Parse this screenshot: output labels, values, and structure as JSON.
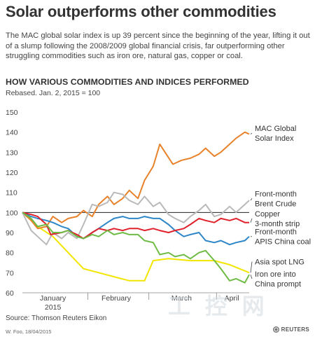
{
  "header": {
    "title": "Solar outperforms other commodities",
    "subtitle": "The MAC global solar index is up 39 percent since the beginning of the year, lifting it out of a slump following the 2008/2009 global financial crisis, far outperforming other struggling commodities such as iron ore, natural gas, copper or coal."
  },
  "chart_heading": "HOW VARIOUS COMMODITIES AND INDICES PERFORMED",
  "chart_subheading": "Rebased. Jan. 2, 2015 = 100",
  "footer": {
    "source": "Source: Thomson Reuters Eikon",
    "credit": "W. Foo, 18/04/2015",
    "logo": "REUTERS"
  },
  "chart_data": {
    "type": "line",
    "title": "HOW VARIOUS COMMODITIES AND INDICES PERFORMED",
    "subtitle": "Rebased. Jan. 2, 2015 = 100",
    "xlabel": "",
    "ylabel": "",
    "x_range": [
      "2015-01-02",
      "2015-04-16"
    ],
    "ylim": [
      60,
      150
    ],
    "yticks": [
      60,
      70,
      80,
      90,
      100,
      110,
      120,
      130,
      140,
      150
    ],
    "grid": false,
    "reference_line": 100,
    "xtick_labels": [
      {
        "label": "January\n2015",
        "date": "2015-01-16"
      },
      {
        "label": "February",
        "date": "2015-02-14"
      },
      {
        "label": "March",
        "date": "2015-03-16"
      },
      {
        "label": "April",
        "date": "2015-04-08"
      }
    ],
    "xtick_separators": [
      "2015-02-01",
      "2015-03-01",
      "2015-04-01"
    ],
    "series": [
      {
        "name": "MAC Global Solar Index",
        "label_lines": [
          "MAC Global",
          "Solar Index"
        ],
        "color": "#e8822a",
        "points": [
          [
            "2015-01-02",
            100
          ],
          [
            "2015-01-06",
            96
          ],
          [
            "2015-01-09",
            92
          ],
          [
            "2015-01-13",
            93
          ],
          [
            "2015-01-16",
            98
          ],
          [
            "2015-01-20",
            95
          ],
          [
            "2015-01-23",
            97
          ],
          [
            "2015-01-27",
            98
          ],
          [
            "2015-01-30",
            101
          ],
          [
            "2015-02-03",
            98
          ],
          [
            "2015-02-06",
            104
          ],
          [
            "2015-02-10",
            108
          ],
          [
            "2015-02-13",
            104
          ],
          [
            "2015-02-17",
            107
          ],
          [
            "2015-02-20",
            111
          ],
          [
            "2015-02-24",
            107
          ],
          [
            "2015-02-27",
            116
          ],
          [
            "2015-03-03",
            123
          ],
          [
            "2015-03-06",
            134
          ],
          [
            "2015-03-09",
            129
          ],
          [
            "2015-03-12",
            124
          ],
          [
            "2015-03-16",
            126
          ],
          [
            "2015-03-20",
            127
          ],
          [
            "2015-03-24",
            129
          ],
          [
            "2015-03-27",
            132
          ],
          [
            "2015-03-31",
            128
          ],
          [
            "2015-04-03",
            130
          ],
          [
            "2015-04-07",
            134
          ],
          [
            "2015-04-10",
            137
          ],
          [
            "2015-04-14",
            140
          ],
          [
            "2015-04-16",
            139
          ]
        ],
        "label_value": 139.5
      },
      {
        "name": "Front-month Brent Crude",
        "label_lines": [
          "Front-month",
          "Brent Crude"
        ],
        "color": "#b9b9b9",
        "points": [
          [
            "2015-01-02",
            100
          ],
          [
            "2015-01-06",
            91
          ],
          [
            "2015-01-09",
            88
          ],
          [
            "2015-01-13",
            84
          ],
          [
            "2015-01-16",
            90
          ],
          [
            "2015-01-20",
            87
          ],
          [
            "2015-01-23",
            90
          ],
          [
            "2015-01-27",
            87
          ],
          [
            "2015-01-30",
            94
          ],
          [
            "2015-02-03",
            104
          ],
          [
            "2015-02-06",
            103
          ],
          [
            "2015-02-10",
            105
          ],
          [
            "2015-02-13",
            110
          ],
          [
            "2015-02-17",
            109
          ],
          [
            "2015-02-20",
            106
          ],
          [
            "2015-02-24",
            104
          ],
          [
            "2015-02-27",
            108
          ],
          [
            "2015-03-03",
            103
          ],
          [
            "2015-03-06",
            105
          ],
          [
            "2015-03-10",
            99
          ],
          [
            "2015-03-13",
            97
          ],
          [
            "2015-03-17",
            95
          ],
          [
            "2015-03-20",
            98
          ],
          [
            "2015-03-24",
            101
          ],
          [
            "2015-03-27",
            104
          ],
          [
            "2015-03-31",
            98
          ],
          [
            "2015-04-03",
            99
          ],
          [
            "2015-04-07",
            103
          ],
          [
            "2015-04-10",
            100
          ],
          [
            "2015-04-14",
            104
          ],
          [
            "2015-04-16",
            106
          ]
        ],
        "label_value": 107
      },
      {
        "name": "Copper 3-month strip",
        "label_lines": [
          "Copper",
          "3-month strip"
        ],
        "color": "#e0202a",
        "points": [
          [
            "2015-01-02",
            100
          ],
          [
            "2015-01-06",
            99
          ],
          [
            "2015-01-09",
            98
          ],
          [
            "2015-01-13",
            94
          ],
          [
            "2015-01-15",
            89
          ],
          [
            "2015-01-20",
            90
          ],
          [
            "2015-01-23",
            91
          ],
          [
            "2015-01-27",
            89
          ],
          [
            "2015-01-30",
            87
          ],
          [
            "2015-02-03",
            90
          ],
          [
            "2015-02-06",
            92
          ],
          [
            "2015-02-10",
            91
          ],
          [
            "2015-02-13",
            92
          ],
          [
            "2015-02-17",
            91
          ],
          [
            "2015-02-20",
            92
          ],
          [
            "2015-02-24",
            92
          ],
          [
            "2015-02-27",
            91
          ],
          [
            "2015-03-03",
            92
          ],
          [
            "2015-03-06",
            91
          ],
          [
            "2015-03-10",
            90
          ],
          [
            "2015-03-13",
            91
          ],
          [
            "2015-03-17",
            92
          ],
          [
            "2015-03-20",
            94
          ],
          [
            "2015-03-24",
            97
          ],
          [
            "2015-03-27",
            96
          ],
          [
            "2015-03-31",
            95
          ],
          [
            "2015-04-03",
            97
          ],
          [
            "2015-04-07",
            96
          ],
          [
            "2015-04-10",
            97
          ],
          [
            "2015-04-14",
            95
          ],
          [
            "2015-04-16",
            95
          ]
        ],
        "label_value": 97
      },
      {
        "name": "Front-month APIS China coal",
        "label_lines": [
          "Front-month",
          "APIS China coal"
        ],
        "color": "#2c86c8",
        "points": [
          [
            "2015-01-02",
            100
          ],
          [
            "2015-01-06",
            98
          ],
          [
            "2015-01-09",
            97
          ],
          [
            "2015-01-13",
            96
          ],
          [
            "2015-01-16",
            95
          ],
          [
            "2015-01-20",
            93
          ],
          [
            "2015-01-23",
            92
          ],
          [
            "2015-01-27",
            88
          ],
          [
            "2015-01-30",
            87
          ],
          [
            "2015-02-03",
            90
          ],
          [
            "2015-02-06",
            92
          ],
          [
            "2015-02-10",
            95
          ],
          [
            "2015-02-13",
            97
          ],
          [
            "2015-02-17",
            98
          ],
          [
            "2015-02-20",
            97
          ],
          [
            "2015-02-24",
            97
          ],
          [
            "2015-02-27",
            98
          ],
          [
            "2015-03-03",
            97
          ],
          [
            "2015-03-06",
            97
          ],
          [
            "2015-03-10",
            94
          ],
          [
            "2015-03-13",
            91
          ],
          [
            "2015-03-17",
            88
          ],
          [
            "2015-03-20",
            89
          ],
          [
            "2015-03-24",
            90
          ],
          [
            "2015-03-27",
            86
          ],
          [
            "2015-03-31",
            85
          ],
          [
            "2015-04-03",
            86
          ],
          [
            "2015-04-07",
            84
          ],
          [
            "2015-04-10",
            85
          ],
          [
            "2015-04-14",
            86
          ],
          [
            "2015-04-16",
            88
          ]
        ],
        "label_value": 88
      },
      {
        "name": "Asia spot LNG",
        "label_lines": [
          "Asia spot LNG"
        ],
        "color": "#f2e600",
        "points": [
          [
            "2015-01-02",
            100
          ],
          [
            "2015-01-09",
            93
          ],
          [
            "2015-01-16",
            88
          ],
          [
            "2015-01-23",
            80
          ],
          [
            "2015-01-30",
            72
          ],
          [
            "2015-02-06",
            70
          ],
          [
            "2015-02-13",
            68
          ],
          [
            "2015-02-20",
            66
          ],
          [
            "2015-02-27",
            66
          ],
          [
            "2015-03-03",
            76
          ],
          [
            "2015-03-10",
            77
          ],
          [
            "2015-03-20",
            76
          ],
          [
            "2015-03-31",
            76
          ],
          [
            "2015-04-07",
            74
          ],
          [
            "2015-04-16",
            70
          ]
        ],
        "label_value": 75.5
      },
      {
        "name": "Iron ore into China prompt",
        "label_lines": [
          "Iron ore into",
          "China prompt"
        ],
        "color": "#6ebb45",
        "points": [
          [
            "2015-01-02",
            100
          ],
          [
            "2015-01-06",
            97
          ],
          [
            "2015-01-09",
            93
          ],
          [
            "2015-01-13",
            94
          ],
          [
            "2015-01-16",
            90
          ],
          [
            "2015-01-20",
            90
          ],
          [
            "2015-01-23",
            91
          ],
          [
            "2015-01-27",
            88
          ],
          [
            "2015-01-30",
            87
          ],
          [
            "2015-02-03",
            89
          ],
          [
            "2015-02-06",
            88
          ],
          [
            "2015-02-10",
            91
          ],
          [
            "2015-02-13",
            89
          ],
          [
            "2015-02-17",
            90
          ],
          [
            "2015-02-20",
            89
          ],
          [
            "2015-02-24",
            89
          ],
          [
            "2015-02-27",
            86
          ],
          [
            "2015-03-03",
            85
          ],
          [
            "2015-03-06",
            79
          ],
          [
            "2015-03-10",
            80
          ],
          [
            "2015-03-13",
            78
          ],
          [
            "2015-03-17",
            79
          ],
          [
            "2015-03-20",
            77
          ],
          [
            "2015-03-24",
            80
          ],
          [
            "2015-03-27",
            81
          ],
          [
            "2015-03-31",
            76
          ],
          [
            "2015-04-03",
            72
          ],
          [
            "2015-04-07",
            66
          ],
          [
            "2015-04-10",
            67
          ],
          [
            "2015-04-14",
            65
          ],
          [
            "2015-04-16",
            69
          ]
        ],
        "label_value": 67
      }
    ]
  },
  "watermark": "工 控 网"
}
